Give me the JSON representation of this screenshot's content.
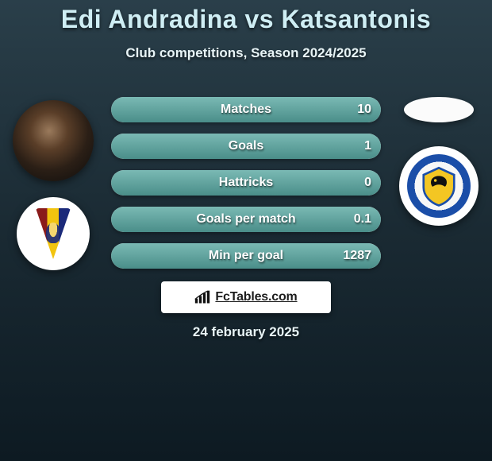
{
  "header": {
    "title": "Edi Andradina vs Katsantonis",
    "subtitle": "Club competitions, Season 2024/2025"
  },
  "colors": {
    "bar_bg": "#c9c9c9",
    "bar_fill_top": "#7ab9b4",
    "bar_fill_bottom": "#4a8e89",
    "text_light": "#e8f4f6",
    "title_color": "#cfeef4"
  },
  "stats": [
    {
      "label": "Matches",
      "value": "10",
      "fill_pct": 100
    },
    {
      "label": "Goals",
      "value": "1",
      "fill_pct": 100
    },
    {
      "label": "Hattricks",
      "value": "0",
      "fill_pct": 100
    },
    {
      "label": "Goals per match",
      "value": "0.1",
      "fill_pct": 100
    },
    {
      "label": "Min per goal",
      "value": "1287",
      "fill_pct": 100
    }
  ],
  "left": {
    "player_name": "Edi Andradina",
    "club_name": "Pogon"
  },
  "right": {
    "player_name": "Katsantonis",
    "club_name": "Piast"
  },
  "footer": {
    "brand_prefix": "Fc",
    "brand_main": "Tables",
    "brand_suffix": ".com"
  },
  "date": "24 february 2025"
}
